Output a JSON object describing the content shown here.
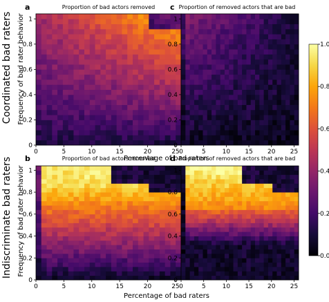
{
  "chart_data": {
    "type": "heatmap",
    "colormap": "inferno",
    "colorbar": {
      "range": [
        0.0,
        1.0
      ],
      "ticks": [
        "0.0",
        "0.2",
        "0.4",
        "0.6",
        "0.8",
        "1.0"
      ]
    },
    "x_ticks": [
      "0",
      "5",
      "10",
      "15",
      "20",
      "25"
    ],
    "y_ticks": [
      "0",
      "0.2",
      "0.4",
      "0.6",
      "0.8",
      "1"
    ],
    "xlim": [
      0,
      26
    ],
    "ylim": [
      0,
      1.04
    ],
    "x_axis_label": "Percentage of bad raters",
    "y_axis_label": "Frequency of bad rater behavior",
    "row_labels": [
      "Coordinated bad raters",
      "Indiscriminate bad raters"
    ],
    "panels": [
      {
        "letter": "a",
        "title": "Proportion of bad actors removed",
        "model": "a"
      },
      {
        "letter": "c",
        "title": "Proportion of removed actors that are bad",
        "model": "c"
      },
      {
        "letter": "b",
        "title": "Proportion of bad actors removed",
        "model": "b"
      },
      {
        "letter": "d",
        "title": "Proportion of removed actors that are bad",
        "model": "d"
      }
    ]
  }
}
